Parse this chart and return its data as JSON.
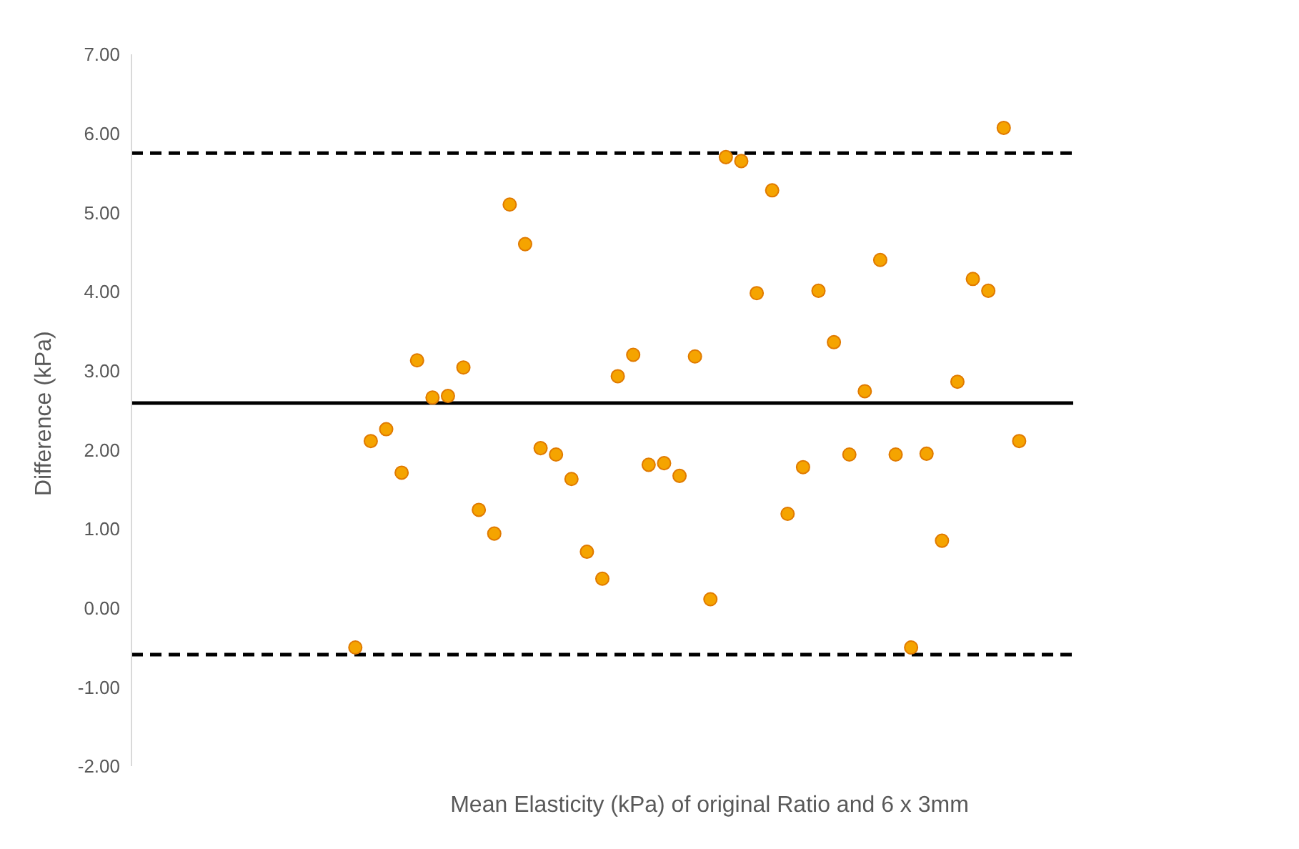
{
  "chart_data": {
    "type": "scatter",
    "xlabel": "Mean Elasticity (kPa) of original Ratio and 6 x 3mm",
    "ylabel": "Difference (kPa)",
    "categories": [
      null,
      null,
      null,
      null,
      null,
      null,
      null,
      null,
      null,
      null,
      null,
      null,
      null,
      null,
      null,
      null,
      null,
      null,
      null,
      null,
      null,
      null,
      null,
      null,
      null,
      null,
      null,
      null,
      null,
      null,
      null,
      null,
      null,
      null,
      null,
      null,
      null,
      null,
      null,
      null,
      null,
      null,
      null,
      null,
      null,
      null,
      null,
      null,
      null,
      null,
      null,
      null,
      null,
      null,
      null,
      null,
      null,
      null,
      null,
      null,
      null
    ],
    "series": [
      {
        "color": "#f5a400",
        "values": [
          null,
          null,
          null,
          null,
          null,
          null,
          null,
          null,
          null,
          null,
          null,
          null,
          null,
          null,
          -0.5,
          2.11,
          2.26,
          1.71,
          3.13,
          2.66,
          2.68,
          3.04,
          1.24,
          0.94,
          5.1,
          4.6,
          2.02,
          1.94,
          1.63,
          0.71,
          0.37,
          2.93,
          3.2,
          1.81,
          1.83,
          1.67,
          3.18,
          0.11,
          5.7,
          5.65,
          3.98,
          5.28,
          1.19,
          1.78,
          4.01,
          3.36,
          1.94,
          2.74,
          4.4,
          1.94,
          -0.5,
          1.95,
          0.85,
          2.86,
          4.16,
          4.01,
          6.07,
          2.11,
          null,
          null,
          null
        ]
      }
    ],
    "ylim": [
      -2,
      7
    ],
    "yticks": [
      {
        "value": -2,
        "label": "-2.00"
      },
      {
        "value": -1,
        "label": "-1.00"
      },
      {
        "value": 0,
        "label": "0.00"
      },
      {
        "value": 1,
        "label": "1.00"
      },
      {
        "value": 2,
        "label": "2.00"
      },
      {
        "value": 3,
        "label": "3.00"
      },
      {
        "value": 4,
        "label": "4.00"
      },
      {
        "value": 5,
        "label": "5.00"
      },
      {
        "value": 6,
        "label": "6.00"
      },
      {
        "value": 7,
        "label": "7.00"
      }
    ],
    "marker": "circle",
    "ref_lines": [
      {
        "axis": "y",
        "value": 2.59,
        "color": "#000000",
        "line_style": "solid"
      },
      {
        "axis": "y",
        "value": 5.75,
        "color": "#000000",
        "line_style": "dashed"
      },
      {
        "axis": "y",
        "value": -0.59,
        "color": "#000000",
        "line_style": "dashed"
      }
    ]
  }
}
